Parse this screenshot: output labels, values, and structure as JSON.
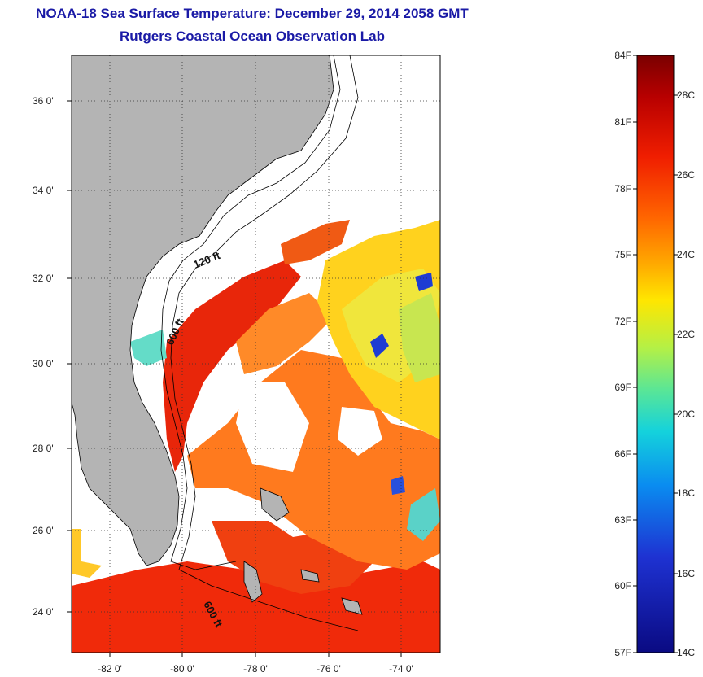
{
  "title": "NOAA-18 Sea Surface Temperature:  December 29, 2014 2058 GMT",
  "subtitle": "Rutgers Coastal Ocean Observation Lab",
  "lat_ticks": [
    "36 0'",
    "34 0'",
    "32 0'",
    "30 0'",
    "28 0'",
    "26 0'",
    "24 0'"
  ],
  "lon_ticks": [
    "-82 0'",
    "-80 0'",
    "-78 0'",
    "-76 0'",
    "-74 0'"
  ],
  "contour_labels": [
    "120 ft",
    "600 ft",
    "600 ft"
  ],
  "colorbar": {
    "f_labels": [
      "84F",
      "81F",
      "78F",
      "75F",
      "72F",
      "69F",
      "66F",
      "63F",
      "60F",
      "57F"
    ],
    "c_labels": [
      "28C",
      "26C",
      "24C",
      "22C",
      "20C",
      "18C",
      "16C",
      "14C"
    ],
    "colors": [
      "#7a0000",
      "#c80000",
      "#ff2a00",
      "#ff7a00",
      "#ffb400",
      "#ffe600",
      "#c8f03c",
      "#64e696",
      "#14d2dc",
      "#0a8cf0",
      "#1e3cdc",
      "#0a0a8c"
    ]
  },
  "colors": {
    "title": "#1a1aa6",
    "land": "#b4b4b4"
  }
}
